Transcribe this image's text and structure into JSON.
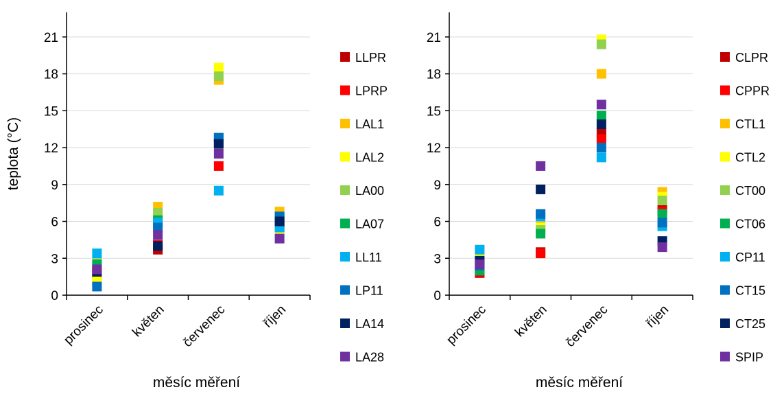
{
  "chart_data": [
    {
      "type": "scatter",
      "ylabel": "teplota (°C)",
      "xlabel": "měsíc měření",
      "categories": [
        "prosinec",
        "květen",
        "červenec",
        "říjen"
      ],
      "y_ticks": [
        0,
        3,
        6,
        9,
        12,
        15,
        18,
        21
      ],
      "ylim": [
        0,
        23
      ],
      "grid": "horizontal",
      "legend_position": "right",
      "series": [
        {
          "name": "LLPR",
          "color": "#C00000",
          "values": [
            1.7,
            3.7,
            12.4,
            5.5
          ]
        },
        {
          "name": "LPRP",
          "color": "#FF0000",
          "values": [
            1.8,
            4.1,
            10.5,
            5.8
          ]
        },
        {
          "name": "LAL1",
          "color": "#FFC000",
          "values": [
            1.2,
            7.2,
            17.5,
            6.8
          ]
        },
        {
          "name": "LAL2",
          "color": "#FFFF00",
          "values": [
            1.1,
            6.2,
            18.5,
            5.2
          ]
        },
        {
          "name": "LA00",
          "color": "#92D050",
          "values": [
            2.6,
            6.7,
            17.8,
            6.4
          ]
        },
        {
          "name": "LA07",
          "color": "#00B050",
          "values": [
            2.5,
            6.1,
            12.8,
            6.2
          ]
        },
        {
          "name": "LL11",
          "color": "#00B0F0",
          "values": [
            3.4,
            5.9,
            8.5,
            5.5
          ]
        },
        {
          "name": "LP11",
          "color": "#0070C0",
          "values": [
            0.7,
            5.5,
            12.8,
            6.4
          ]
        },
        {
          "name": "LA14",
          "color": "#002060",
          "values": [
            1.9,
            4.0,
            12.3,
            6.0
          ]
        },
        {
          "name": "LA28",
          "color": "#7030A0",
          "values": [
            2.1,
            4.9,
            11.5,
            4.6
          ]
        }
      ]
    },
    {
      "type": "scatter",
      "ylabel": "",
      "xlabel": "měsíc měření",
      "categories": [
        "prosinec",
        "květen",
        "červenec",
        "říjen"
      ],
      "y_ticks": [
        0,
        3,
        6,
        9,
        12,
        15,
        18,
        21
      ],
      "ylim": [
        0,
        23
      ],
      "grid": "horizontal",
      "legend_position": "right",
      "series": [
        {
          "name": "CLPR",
          "color": "#C00000",
          "values": [
            1.8,
            3.5,
            13.2,
            7.0
          ]
        },
        {
          "name": "CPPR",
          "color": "#FF0000",
          "values": [
            1.9,
            3.4,
            12.7,
            6.8
          ]
        },
        {
          "name": "CTL1",
          "color": "#FFC000",
          "values": [
            3.0,
            5.6,
            18.0,
            8.4
          ]
        },
        {
          "name": "CTL2",
          "color": "#FFFF00",
          "values": [
            3.2,
            5.5,
            20.8,
            8.0
          ]
        },
        {
          "name": "CT00",
          "color": "#92D050",
          "values": [
            2.2,
            5.3,
            20.4,
            7.7
          ]
        },
        {
          "name": "CT06",
          "color": "#00B050",
          "values": [
            2.0,
            5.0,
            14.6,
            6.6
          ]
        },
        {
          "name": "CP11",
          "color": "#00B0F0",
          "values": [
            3.7,
            6.4,
            11.2,
            5.6
          ]
        },
        {
          "name": "CT15",
          "color": "#0070C0",
          "values": [
            2.4,
            6.6,
            12.0,
            5.9
          ]
        },
        {
          "name": "CT25",
          "color": "#002060",
          "values": [
            2.8,
            8.6,
            13.9,
            4.4
          ]
        },
        {
          "name": "SPIP",
          "color": "#7030A0",
          "values": [
            2.5,
            10.5,
            15.5,
            3.9
          ]
        }
      ]
    }
  ]
}
